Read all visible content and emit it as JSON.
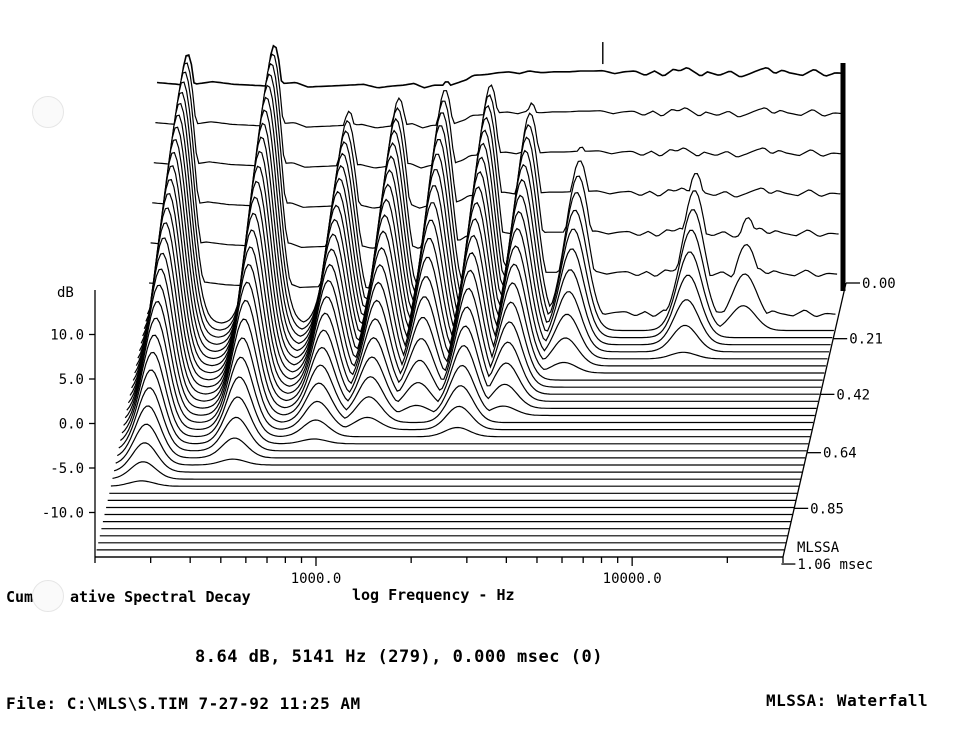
{
  "chart_data": {
    "type": "waterfall",
    "title": "Cumulative Spectral Decay",
    "xlabel": "log Frequency - Hz",
    "ylabel": "dB",
    "xscale": "log",
    "xlim": [
      200,
      30000
    ],
    "ylim": [
      -15,
      15
    ],
    "x_ticks": [
      "1000.0",
      "10000.0"
    ],
    "x_tick_values": [
      1000,
      10000
    ],
    "y_ticks": [
      "10.0",
      "5.0",
      "0.0",
      "-5.0",
      "-10.0"
    ],
    "y_tick_values": [
      10,
      5,
      0,
      -5,
      -10
    ],
    "z_label_unit": "msec",
    "z_ticks": [
      "0.00",
      "0.21",
      "0.42",
      "0.64",
      "0.85",
      "1.06"
    ],
    "z_tick_values": [
      0.0,
      0.21,
      0.42,
      0.64,
      0.85,
      1.06
    ],
    "watermark": "MLSSA",
    "slices": 40,
    "slice_step_ms": 0.0265,
    "floor_db": -15,
    "first_slice_profile": {
      "freq_hz": [
        200,
        250,
        300,
        350,
        400,
        450,
        500,
        550,
        600,
        700,
        800,
        900,
        1000,
        1100,
        1200,
        1300,
        1400,
        1500,
        1700,
        1900,
        2000,
        2200,
        2400,
        2600,
        2800,
        3000,
        3300,
        3600,
        4000,
        4400,
        4800,
        5141,
        5600,
        6000,
        6500,
        7000,
        7500,
        8000,
        8600,
        9000,
        9500,
        10000,
        10500,
        11000,
        12000,
        13000,
        14000,
        15000,
        16000,
        17000,
        18000,
        19000,
        20000,
        22000,
        24000,
        26000,
        28000,
        30000
      ],
      "db": [
        7.3,
        7.0,
        7.4,
        7.1,
        7.0,
        6.9,
        7.2,
        7.3,
        6.8,
        6.9,
        7.0,
        7.1,
        6.7,
        6.9,
        7.0,
        7.2,
        6.7,
        7.0,
        7.0,
        7.6,
        8.1,
        8.2,
        8.4,
        8.5,
        8.3,
        8.6,
        8.4,
        8.5,
        8.5,
        8.6,
        8.6,
        8.64,
        8.3,
        8.5,
        8.6,
        8.1,
        8.6,
        8.0,
        8.8,
        8.6,
        9.0,
        8.5,
        8.0,
        8.5,
        8.1,
        8.6,
        7.9,
        8.3,
        8.7,
        9.0,
        8.3,
        8.7,
        8.4,
        8.1,
        8.8,
        8.0,
        8.4,
        8.3
      ]
    },
    "decay_features": [
      {
        "freq_hz": 250,
        "db": 10.5,
        "ms": 0.78
      },
      {
        "freq_hz": 470,
        "db": 11.5,
        "ms": 0.7
      },
      {
        "freq_hz": 820,
        "db": 5.0,
        "ms": 0.62
      },
      {
        "freq_hz": 1180,
        "db": 6.5,
        "ms": 0.58
      },
      {
        "freq_hz": 1650,
        "db": 7.5,
        "ms": 0.52
      },
      {
        "freq_hz": 2300,
        "db": 8.0,
        "ms": 0.6
      },
      {
        "freq_hz": 3100,
        "db": 6.0,
        "ms": 0.52
      },
      {
        "freq_hz": 4500,
        "db": 2.5,
        "ms": 0.36
      },
      {
        "freq_hz": 6200,
        "db": -3.0,
        "ms": 0.1
      },
      {
        "freq_hz": 10500,
        "db": 1.5,
        "ms": 0.3
      },
      {
        "freq_hz": 15500,
        "db": 0.5,
        "ms": 0.21
      }
    ]
  },
  "caption": {
    "cum_left": "Cum",
    "cum_right": "ative Spectral Decay",
    "xlabel": "log Frequency - Hz"
  },
  "readout": "8.64 dB, 5141 Hz (279), 0.000 msec (0)",
  "file_info": "File: C:\\MLS\\S.TIM 7-27-92 11:25 AM",
  "mode": "MLSSA: Waterfall"
}
